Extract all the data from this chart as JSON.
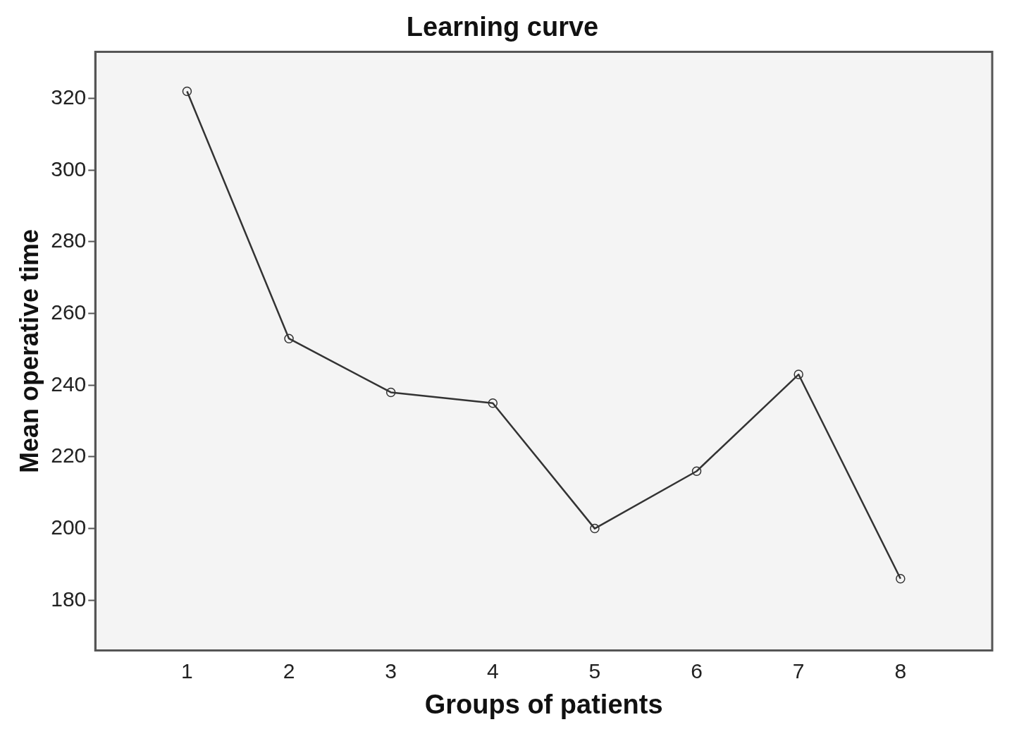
{
  "chart_data": {
    "type": "line",
    "title": "Learning curve",
    "xlabel": "Groups of patients",
    "ylabel": "Mean operative time",
    "x": [
      1,
      2,
      3,
      4,
      5,
      6,
      7,
      8
    ],
    "series": [
      {
        "color": "#333333",
        "values": [
          322,
          253,
          238,
          235,
          200,
          216,
          243,
          186
        ]
      }
    ],
    "xlim": [
      0.1,
      8.9
    ],
    "xticks": [
      1,
      2,
      3,
      4,
      5,
      6,
      7,
      8
    ],
    "ylim": [
      166,
      333
    ],
    "yticks": [
      180,
      200,
      220,
      240,
      260,
      280,
      300,
      320
    ],
    "grid": false,
    "legend": false,
    "marker": "circle",
    "line_style": "solid"
  }
}
